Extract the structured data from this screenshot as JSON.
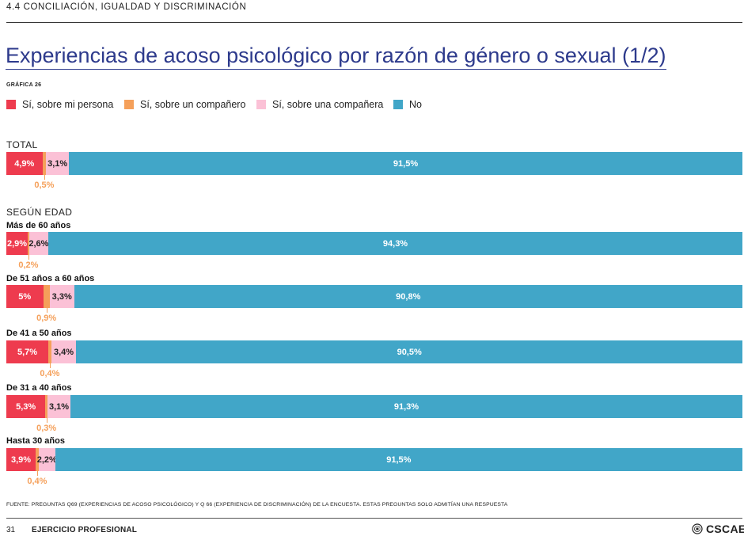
{
  "header": {
    "section": "4.4 CONCILIACIÓN, IGUALDAD Y DISCRIMINACIÓN"
  },
  "title": "Experiencias de acoso psicológico por razón de género o sexual (1/2)",
  "chart_label": "GRÁFICA 26",
  "colors": {
    "persona": "#ee3b4e",
    "companero": "#f5a05a",
    "companera": "#fbc1d6",
    "no": "#41a6c8"
  },
  "legend": [
    {
      "label": "Sí, sobre mi persona",
      "color": "#ee3b4e"
    },
    {
      "label": "Sí, sobre un compañero",
      "color": "#f5a05a"
    },
    {
      "label": "Sí, sobre una compañera",
      "color": "#fbc1d6"
    },
    {
      "label": "No",
      "color": "#41a6c8"
    }
  ],
  "groups": {
    "total": "TOTAL",
    "edad": "SEGÚN EDAD"
  },
  "chart_data": {
    "type": "bar",
    "orientation": "horizontal",
    "stacked": true,
    "unit": "%",
    "categories": [
      "TOTAL",
      "Más de 60 años",
      "De 51 años a 60 años",
      "De 41 a 50 años",
      "De 31 a 40 años",
      "Hasta 30 años"
    ],
    "series": [
      {
        "name": "Sí, sobre mi persona",
        "values": [
          4.9,
          2.9,
          5,
          5.7,
          5.3,
          3.9
        ],
        "labels": [
          "4,9%",
          "2,9%",
          "5%",
          "5,7%",
          "5,3%",
          "3,9%"
        ]
      },
      {
        "name": "Sí, sobre un compañero",
        "values": [
          0.5,
          0.2,
          0.9,
          0.4,
          0.3,
          0.4
        ],
        "labels": [
          "0,5%",
          "0,2%",
          "0,9%",
          "0,4%",
          "0,3%",
          "0,4%"
        ]
      },
      {
        "name": "Sí, sobre una compañera",
        "values": [
          3.1,
          2.6,
          3.3,
          3.4,
          3.1,
          2.2
        ],
        "labels": [
          "3,1%",
          "2,6%",
          "3,3%",
          "3,4%",
          "3,1%",
          "2,2%"
        ]
      },
      {
        "name": "No",
        "values": [
          91.5,
          94.3,
          90.8,
          90.5,
          91.3,
          91.5
        ],
        "labels": [
          "91,5%",
          "94,3%",
          "90,8%",
          "90,5%",
          "91,3%",
          "91,5%"
        ]
      }
    ],
    "xlim": [
      0,
      100
    ]
  },
  "footer": {
    "source": "FUENTE: PREGUNTAS Q69 (EXPERIENCIAS DE ACOSO PSICOLÓGICO) Y Q 66 (EXPERIENCIA DE DISCRIMINACIÓN) DE LA ENCUESTA. ESTAS PREGUNTAS SOLO ADMITÍAN UNA RESPUESTA",
    "page": "31",
    "section": "EJERCICIO PROFESIONAL",
    "logo_text": "CSCAE",
    "logo_icon": "seal-icon"
  }
}
